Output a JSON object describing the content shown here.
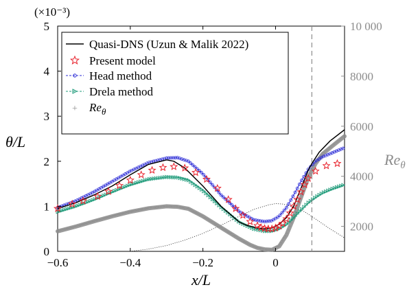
{
  "chart_data": {
    "type": "line",
    "multiplier_label": "(×10⁻³)",
    "xlabel": "x/L",
    "ylabel": "θ/L",
    "y2label": "Re_θ",
    "xlim": [
      -0.6,
      0.19
    ],
    "ylim": [
      0,
      5
    ],
    "y2lim": [
      1000,
      10000
    ],
    "x_ticks": [
      -0.6,
      -0.4,
      -0.2,
      0
    ],
    "x_tick_labels": [
      "−0.6",
      "−0.4",
      "−0.2",
      "0"
    ],
    "y_ticks": [
      0,
      1,
      2,
      3,
      4,
      5
    ],
    "y_tick_labels": [
      "0",
      "1",
      "2",
      "3",
      "4",
      "5"
    ],
    "y2_ticks": [
      2000,
      4000,
      6000,
      8000,
      10000
    ],
    "y2_tick_labels": [
      "2000",
      "4000",
      "6000",
      "8000",
      "10 000"
    ],
    "vline_x": 0.1,
    "legend_position": "top-left",
    "grid": false,
    "colors": {
      "quasi_dns": "#000000",
      "present": "#e8202a",
      "head": "#2b2bd6",
      "drela": "#1f9b7a",
      "re_theta": "#8c8c8c",
      "vline": "#8c8c8c",
      "pressure": "#000000"
    },
    "series": [
      {
        "name": "Quasi-DNS (Uzun & Malik 2022)",
        "axis": "left",
        "style": "line",
        "x": [
          -0.6,
          -0.55,
          -0.5,
          -0.45,
          -0.4,
          -0.35,
          -0.3,
          -0.28,
          -0.25,
          -0.2,
          -0.15,
          -0.1,
          -0.08,
          -0.05,
          -0.03,
          -0.01,
          0.01,
          0.03,
          0.05,
          0.07,
          0.09,
          0.1,
          0.12,
          0.15,
          0.19
        ],
        "y": [
          0.95,
          1.08,
          1.25,
          1.45,
          1.7,
          1.93,
          2.03,
          2.0,
          1.85,
          1.45,
          1.0,
          0.65,
          0.58,
          0.52,
          0.5,
          0.52,
          0.6,
          0.75,
          1.0,
          1.4,
          1.8,
          1.95,
          2.2,
          2.45,
          2.7
        ]
      },
      {
        "name": "Present model",
        "axis": "left",
        "style": "stars",
        "x": [
          -0.6,
          -0.56,
          -0.53,
          -0.49,
          -0.46,
          -0.43,
          -0.4,
          -0.37,
          -0.34,
          -0.31,
          -0.28,
          -0.25,
          -0.22,
          -0.19,
          -0.16,
          -0.13,
          -0.11,
          -0.09,
          -0.07,
          -0.05,
          -0.04,
          -0.03,
          -0.02,
          -0.01,
          0.0,
          0.01,
          0.02,
          0.03,
          0.04,
          0.05,
          0.06,
          0.07,
          0.08,
          0.09,
          0.11,
          0.14,
          0.17
        ],
        "y": [
          0.95,
          1.05,
          1.12,
          1.22,
          1.33,
          1.46,
          1.58,
          1.7,
          1.8,
          1.86,
          1.88,
          1.85,
          1.75,
          1.6,
          1.4,
          1.15,
          0.95,
          0.8,
          0.66,
          0.57,
          0.53,
          0.51,
          0.5,
          0.5,
          0.52,
          0.56,
          0.62,
          0.72,
          0.85,
          1.0,
          1.15,
          1.32,
          1.48,
          1.62,
          1.78,
          1.9,
          1.95
        ]
      },
      {
        "name": "Head method",
        "axis": "left",
        "style": "line-markers",
        "x": [
          -0.6,
          -0.55,
          -0.5,
          -0.45,
          -0.4,
          -0.35,
          -0.3,
          -0.27,
          -0.24,
          -0.2,
          -0.15,
          -0.1,
          -0.06,
          -0.03,
          -0.01,
          0.01,
          0.03,
          0.05,
          0.07,
          0.09,
          0.11,
          0.13,
          0.16,
          0.19
        ],
        "y": [
          0.97,
          1.12,
          1.32,
          1.55,
          1.78,
          1.97,
          2.07,
          2.08,
          2.0,
          1.72,
          1.25,
          0.88,
          0.7,
          0.66,
          0.68,
          0.78,
          0.97,
          1.25,
          1.55,
          1.82,
          2.0,
          2.1,
          2.2,
          2.3
        ]
      },
      {
        "name": "Drela method",
        "axis": "left",
        "style": "line-markers",
        "x": [
          -0.6,
          -0.55,
          -0.5,
          -0.45,
          -0.4,
          -0.35,
          -0.3,
          -0.27,
          -0.24,
          -0.2,
          -0.15,
          -0.1,
          -0.06,
          -0.03,
          -0.01,
          0.01,
          0.03,
          0.05,
          0.07,
          0.09,
          0.11,
          0.13,
          0.16,
          0.19
        ],
        "y": [
          0.88,
          1.0,
          1.15,
          1.32,
          1.48,
          1.6,
          1.65,
          1.64,
          1.58,
          1.35,
          0.98,
          0.65,
          0.5,
          0.45,
          0.45,
          0.5,
          0.6,
          0.75,
          0.92,
          1.08,
          1.2,
          1.3,
          1.4,
          1.48
        ]
      },
      {
        "name": "Re_θ",
        "axis": "right",
        "style": "thick-markers",
        "x": [
          -0.6,
          -0.55,
          -0.5,
          -0.45,
          -0.4,
          -0.35,
          -0.3,
          -0.27,
          -0.24,
          -0.2,
          -0.15,
          -0.1,
          -0.07,
          -0.05,
          -0.03,
          -0.01,
          0.01,
          0.03,
          0.05,
          0.07,
          0.09,
          0.11,
          0.13,
          0.16,
          0.19
        ],
        "y": [
          1800,
          1990,
          2200,
          2400,
          2580,
          2720,
          2800,
          2780,
          2700,
          2400,
          1950,
          1500,
          1260,
          1140,
          1080,
          1060,
          1200,
          1650,
          2350,
          3150,
          3950,
          4500,
          4900,
          5250,
          5600
        ]
      },
      {
        "name": "",
        "axis": "left",
        "style": "dotted",
        "x": [
          -0.4,
          -0.35,
          -0.3,
          -0.25,
          -0.2,
          -0.15,
          -0.1,
          -0.06,
          -0.02,
          0.0,
          0.02,
          0.05,
          0.08,
          0.11,
          0.15,
          0.19
        ],
        "y": [
          0.0,
          0.05,
          0.13,
          0.25,
          0.4,
          0.58,
          0.78,
          0.93,
          1.03,
          1.06,
          1.05,
          0.98,
          0.88,
          0.72,
          0.5,
          0.3
        ]
      }
    ]
  }
}
